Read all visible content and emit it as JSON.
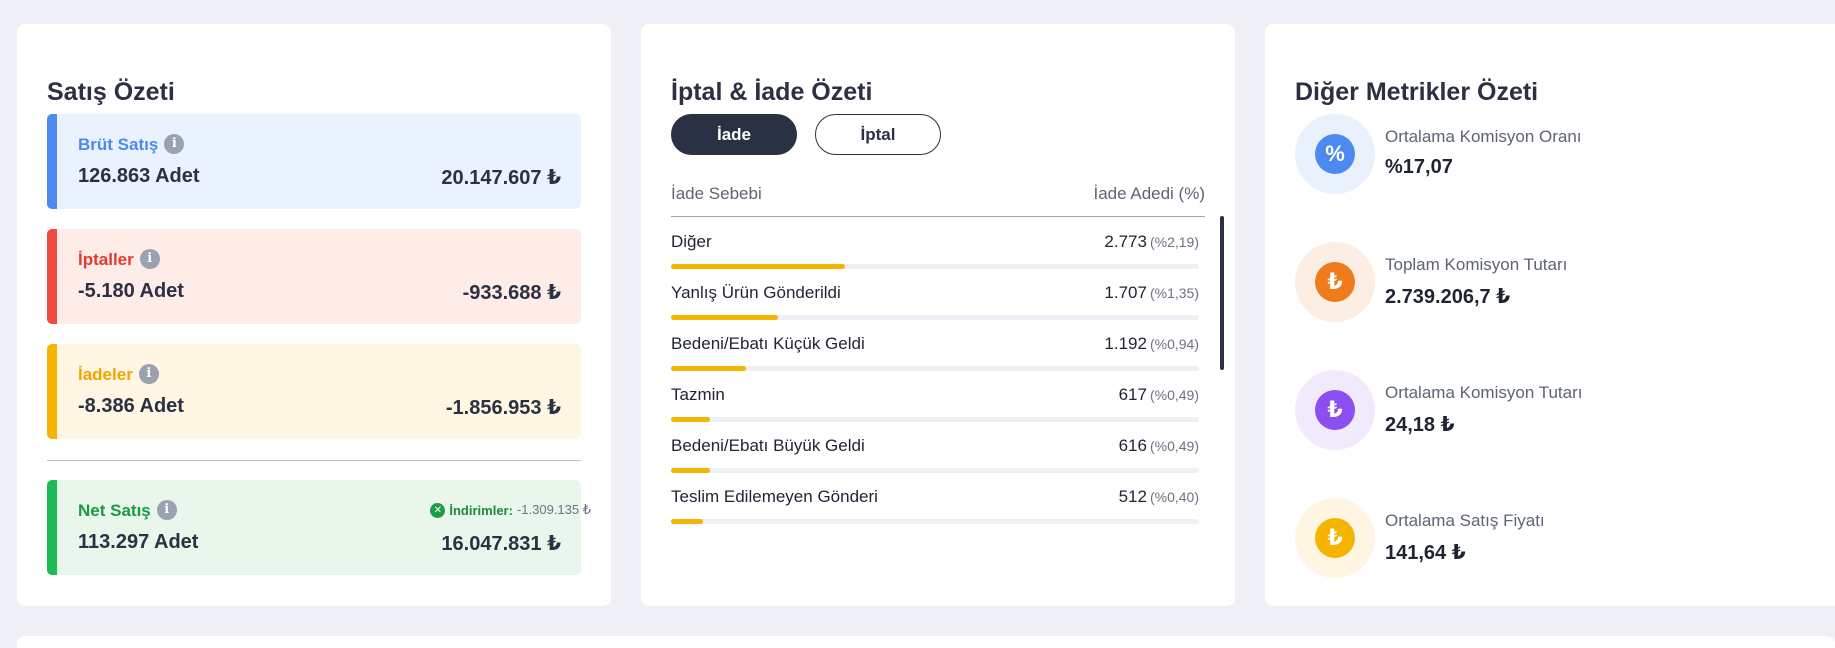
{
  "sales_summary": {
    "title": "Satış Özeti",
    "info_glyph": "i",
    "gross": {
      "label": "Brüt Satış",
      "qty": "126.863 Adet",
      "amount": "20.147.607 ₺",
      "bg": "#eaf2ff",
      "bar": "#4d8af0",
      "label_color": "#4d8af0"
    },
    "cancellations": {
      "label": "İptaller",
      "qty": "-5.180 Adet",
      "amount": "-933.688 ₺",
      "bg": "#feece9",
      "bar": "#f04b40",
      "label_color": "#e03a33"
    },
    "returns": {
      "label": "İadeler",
      "qty": "-8.386 Adet",
      "amount": "-1.856.953 ₺",
      "bg": "#fff6e3",
      "bar": "#f5b400",
      "label_color": "#f0a500"
    },
    "net": {
      "label": "Net Satış",
      "qty": "113.297 Adet",
      "amount": "16.047.831 ₺",
      "bg": "#e8f6ec",
      "bar": "#1dbb56",
      "label_color": "#1a9a45",
      "discount_label": "İndirimler:",
      "discount_value": "-1.309.135 ₺"
    }
  },
  "returns_summary": {
    "title": "İptal & İade Özeti",
    "tabs": [
      "İade",
      "İptal"
    ],
    "active_tab": "İade",
    "col_reason": "İade Sebebi",
    "col_count": "İade Adedi (%)",
    "rows": [
      {
        "label": "Diğer",
        "count": "2.773",
        "pct": "(%2,19)",
        "fill": 0.33
      },
      {
        "label": "Yanlış Ürün Gönderildi",
        "count": "1.707",
        "pct": "(%1,35)",
        "fill": 0.203
      },
      {
        "label": "Bedeni/Ebatı Küçük Geldi",
        "count": "1.192",
        "pct": "(%0,94)",
        "fill": 0.142
      },
      {
        "label": "Tazmin",
        "count": "617",
        "pct": "(%0,49)",
        "fill": 0.074
      },
      {
        "label": "Bedeni/Ebatı Büyük Geldi",
        "count": "616",
        "pct": "(%0,49)",
        "fill": 0.074
      },
      {
        "label": "Teslim Edilemeyen Gönderi",
        "count": "512",
        "pct": "(%0,40)",
        "fill": 0.061
      }
    ]
  },
  "other_metrics": {
    "title": "Diğer Metrikler Özeti",
    "items": [
      {
        "label": "Ortalama Komisyon Oranı",
        "value": "%17,07",
        "icon": "percent-badge-icon",
        "glyph": "%",
        "circle_bg": "#e9f1fd",
        "glyph_bg": "#4d8af0"
      },
      {
        "label": "Toplam Komisyon Tutarı",
        "value": "2.739.206,7 ₺",
        "icon": "lira-coin-icon",
        "glyph": "₺",
        "circle_bg": "#fdeee3",
        "glyph_bg": "#f07b1d"
      },
      {
        "label": "Ortalama Komisyon Tutarı",
        "value": "24,18 ₺",
        "icon": "lira-coin-icon",
        "glyph": "₺",
        "circle_bg": "#f1eafd",
        "glyph_bg": "#8b4ff0"
      },
      {
        "label": "Ortalama Satış Fiyatı",
        "value": "141,64 ₺",
        "icon": "lira-coin-icon",
        "glyph": "₺",
        "circle_bg": "#fef5e3",
        "glyph_bg": "#f5b400"
      }
    ]
  }
}
